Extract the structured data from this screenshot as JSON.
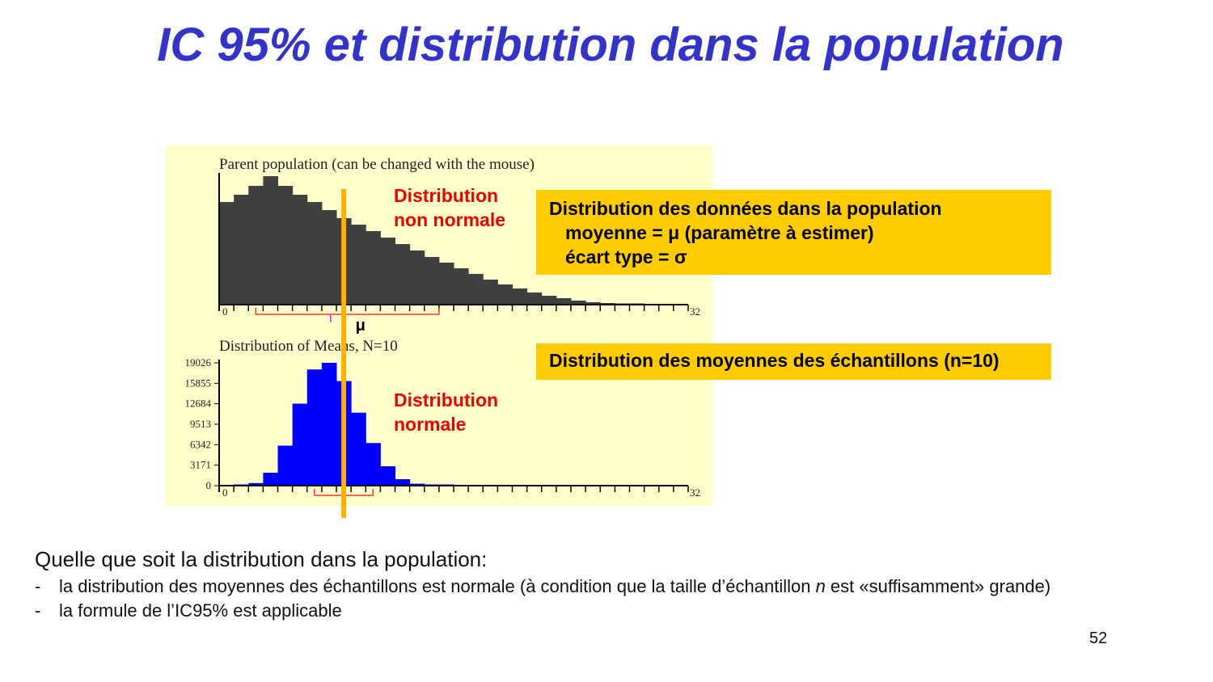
{
  "slide": {
    "title": "IC 95% et distribution dans la population",
    "page_number": "52",
    "label_non_normal": [
      "Distribution",
      "non normale"
    ],
    "label_normal": [
      "Distribution",
      "normale"
    ],
    "box_population": {
      "line1": "Distribution des données dans la population",
      "line2": "moyenne =  μ (paramètre à estimer)",
      "line3": "écart type = σ"
    },
    "box_means": "Distribution des moyennes des échantillons (n=10)",
    "conclusion": "Quelle que soit la distribution dans la population:",
    "bullets": [
      {
        "dash": "-",
        "before": "la distribution des moyennes des échantillons est normale (à condition que la taille d’échantillon ",
        "italic": "n",
        "after": " est «suffisamment» grande)"
      },
      {
        "dash": "-",
        "before": "la formule de l’IC95% est applicable",
        "italic": "",
        "after": ""
      }
    ],
    "colors": {
      "title": "#3333cc",
      "highlight_box": "#ffcc00",
      "red_label": "#ee0000",
      "mean_line": "#ffb000",
      "panel": "#ffffcc"
    }
  },
  "chart_data": [
    {
      "type": "bar",
      "title": "Parent population (can be changed with the mouse)",
      "x_tick_labels": [
        "0",
        "32"
      ],
      "xlim": [
        0,
        32
      ],
      "mean_label": "μ",
      "mean_x": 8.5,
      "ci_bracket": [
        2.5,
        15
      ],
      "bar_color": "#404040",
      "values": [
        127,
        136,
        147,
        159,
        147,
        136,
        127,
        117,
        107,
        99,
        91,
        83,
        75,
        67,
        59,
        52,
        45,
        38,
        31,
        25,
        20,
        15,
        11,
        8,
        5,
        3,
        2,
        1,
        0.5,
        0,
        0,
        0
      ]
    },
    {
      "type": "bar",
      "title": "Distribution of Means, N=10",
      "x_tick_labels": [
        "0",
        "32"
      ],
      "xlim": [
        0,
        32
      ],
      "y_tick_labels": [
        "0",
        "3171",
        "6342",
        "9513",
        "12684",
        "15855",
        "19026"
      ],
      "ylim": [
        0,
        19026
      ],
      "mean_x": 8.5,
      "ci_bracket": [
        6.5,
        10.5
      ],
      "bar_color": "#0000ff",
      "values": [
        0,
        100,
        400,
        2000,
        6200,
        12700,
        18000,
        19026,
        16200,
        11300,
        6600,
        3000,
        1000,
        300,
        100,
        100,
        0,
        0,
        0,
        0,
        0,
        0,
        0,
        0,
        0,
        0,
        0,
        0,
        0,
        0,
        0,
        0
      ]
    }
  ]
}
